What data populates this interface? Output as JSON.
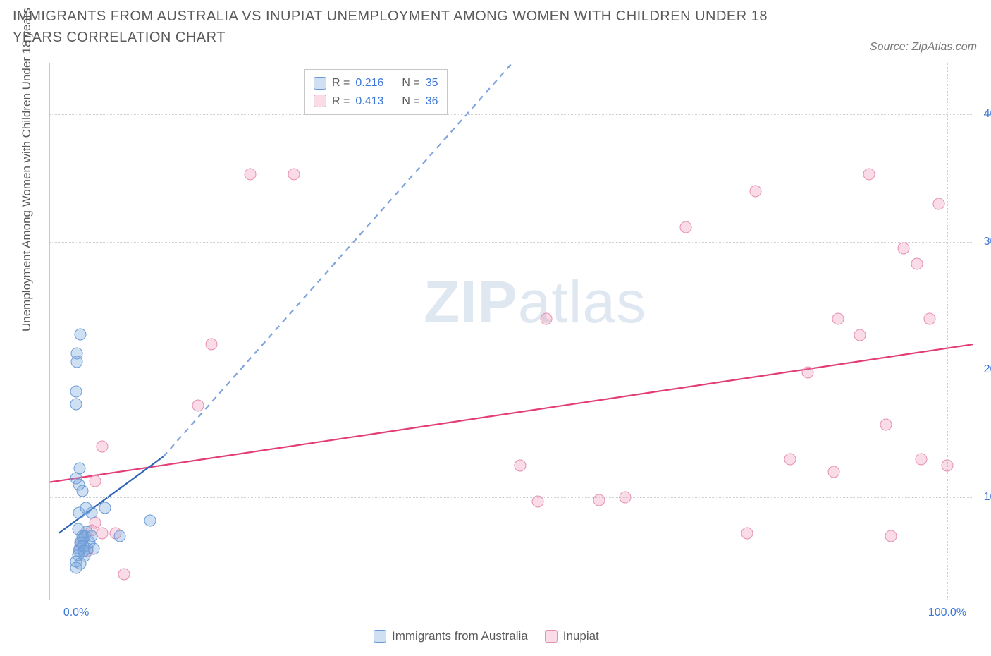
{
  "title": "IMMIGRANTS FROM AUSTRALIA VS INUPIAT UNEMPLOYMENT AMONG WOMEN WITH CHILDREN UNDER 18 YEARS CORRELATION CHART",
  "source": "Source: ZipAtlas.com",
  "ylabel": "Unemployment Among Women with Children Under 18 years",
  "watermark_bold": "ZIP",
  "watermark_light": "atlas",
  "chart": {
    "type": "scatter",
    "xlim": [
      -3,
      103
    ],
    "ylim": [
      2,
      44
    ],
    "xticks": [
      0,
      10,
      50,
      100
    ],
    "xtick_labels_shown": {
      "0": "0.0%",
      "100": "100.0%"
    },
    "xtick_minor_marks": [
      10,
      50
    ],
    "yticks": [
      10,
      20,
      30,
      40
    ],
    "ytick_labels": [
      "10.0%",
      "20.0%",
      "30.0%",
      "40.0%"
    ],
    "grid_color": "#d0d0d0",
    "axis_color": "#c8c8c8",
    "tick_label_color": "#3b78d8",
    "background_color": "#ffffff"
  },
  "series": {
    "a": {
      "label": "Immigrants from Australia",
      "fill": "rgba(120,165,220,0.35)",
      "stroke": "#6a9bd8",
      "line_color": "#2e63b6",
      "line_dash_color": "#7da3dd",
      "R": "0.216",
      "N": "35",
      "trend_solid": {
        "x1": -2,
        "y1": 7.2,
        "x2": 10,
        "y2": 13.2
      },
      "trend_dashed": {
        "x1": 10,
        "y1": 13.2,
        "x2": 50,
        "y2": 44
      },
      "points": [
        {
          "x": 0.0,
          "y": 5.0
        },
        {
          "x": 0.2,
          "y": 5.5
        },
        {
          "x": 0.4,
          "y": 6.0
        },
        {
          "x": 0.6,
          "y": 6.4
        },
        {
          "x": 0.8,
          "y": 6.8
        },
        {
          "x": 1.0,
          "y": 7.0
        },
        {
          "x": 1.2,
          "y": 7.3
        },
        {
          "x": 0.0,
          "y": 4.5
        },
        {
          "x": 0.3,
          "y": 5.8
        },
        {
          "x": 0.5,
          "y": 6.5
        },
        {
          "x": 0.7,
          "y": 7.0
        },
        {
          "x": 1.0,
          "y": 5.4
        },
        {
          "x": 1.3,
          "y": 6.0
        },
        {
          "x": 1.5,
          "y": 6.5
        },
        {
          "x": 1.8,
          "y": 7.0
        },
        {
          "x": 2.0,
          "y": 6.0
        },
        {
          "x": 1.8,
          "y": 8.8
        },
        {
          "x": 3.3,
          "y": 9.2
        },
        {
          "x": 5.0,
          "y": 7.0
        },
        {
          "x": 8.5,
          "y": 8.2
        },
        {
          "x": 0.3,
          "y": 8.8
        },
        {
          "x": 1.1,
          "y": 9.2
        },
        {
          "x": 0.0,
          "y": 11.5
        },
        {
          "x": 0.4,
          "y": 12.3
        },
        {
          "x": 0.0,
          "y": 17.3
        },
        {
          "x": 0.0,
          "y": 18.3
        },
        {
          "x": 0.1,
          "y": 20.6
        },
        {
          "x": 0.1,
          "y": 21.3
        },
        {
          "x": 0.5,
          "y": 22.8
        },
        {
          "x": 0.3,
          "y": 11.0
        },
        {
          "x": 0.7,
          "y": 10.5
        },
        {
          "x": 0.8,
          "y": 6.2
        },
        {
          "x": 0.2,
          "y": 7.5
        },
        {
          "x": 0.9,
          "y": 5.8
        },
        {
          "x": 0.5,
          "y": 4.8
        }
      ]
    },
    "b": {
      "label": "Inupiat",
      "fill": "rgba(235,140,175,0.30)",
      "stroke": "#e68fb0",
      "line_color": "#e23d78",
      "R": "0.413",
      "N": "36",
      "trend_solid": {
        "x1": -3,
        "y1": 11.2,
        "x2": 103,
        "y2": 22.0
      },
      "points": [
        {
          "x": 0.5,
          "y": 6.2
        },
        {
          "x": 1.0,
          "y": 7.0
        },
        {
          "x": 1.3,
          "y": 5.8
        },
        {
          "x": 1.8,
          "y": 7.4
        },
        {
          "x": 2.2,
          "y": 8.0
        },
        {
          "x": 4.5,
          "y": 7.2
        },
        {
          "x": 3.0,
          "y": 7.2
        },
        {
          "x": 5.5,
          "y": 4.0
        },
        {
          "x": 2.2,
          "y": 11.3
        },
        {
          "x": 3.0,
          "y": 14.0
        },
        {
          "x": 14.0,
          "y": 17.2
        },
        {
          "x": 15.5,
          "y": 22.0
        },
        {
          "x": 20.0,
          "y": 35.3
        },
        {
          "x": 25.0,
          "y": 35.3
        },
        {
          "x": 54.0,
          "y": 24.0
        },
        {
          "x": 51.0,
          "y": 12.5
        },
        {
          "x": 53.0,
          "y": 9.7
        },
        {
          "x": 60.0,
          "y": 9.8
        },
        {
          "x": 63.0,
          "y": 10.0
        },
        {
          "x": 70.0,
          "y": 31.2
        },
        {
          "x": 77.0,
          "y": 7.2
        },
        {
          "x": 78.0,
          "y": 34.0
        },
        {
          "x": 82.0,
          "y": 13.0
        },
        {
          "x": 84.0,
          "y": 19.8
        },
        {
          "x": 87.0,
          "y": 12.0
        },
        {
          "x": 87.5,
          "y": 24.0
        },
        {
          "x": 90.0,
          "y": 22.7
        },
        {
          "x": 91.0,
          "y": 35.3
        },
        {
          "x": 93.0,
          "y": 15.7
        },
        {
          "x": 93.5,
          "y": 7.0
        },
        {
          "x": 95.0,
          "y": 29.5
        },
        {
          "x": 96.5,
          "y": 28.3
        },
        {
          "x": 97.0,
          "y": 13.0
        },
        {
          "x": 98.0,
          "y": 24.0
        },
        {
          "x": 100.0,
          "y": 12.5
        },
        {
          "x": 99.0,
          "y": 33.0
        }
      ]
    }
  },
  "legend_top": {
    "R_label": "R =",
    "N_label": "N ="
  },
  "legend_bottom_items": [
    "a",
    "b"
  ]
}
